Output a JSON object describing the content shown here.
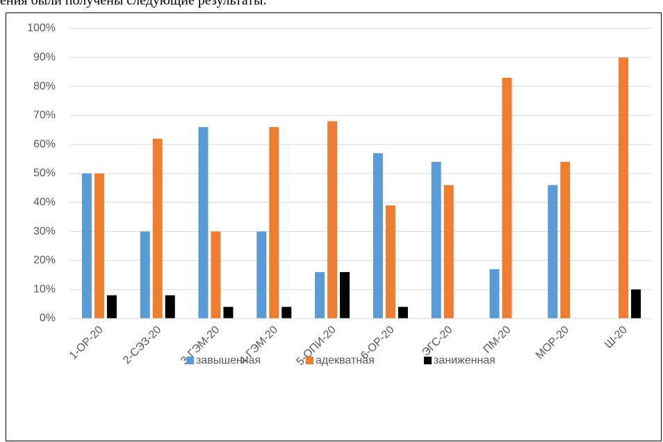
{
  "document_text": "ения были получены следующие результаты:",
  "chart_data": {
    "type": "bar",
    "categories": [
      "1-ОР-20",
      "2-СЭЗ-20",
      "3-ГЭМ-20",
      "4-ГЭМ-20",
      "5-ОПИ-20",
      "6-ОР-20",
      "ЭГС-20",
      "ПМ-20",
      "МОР-20",
      "Ш-20"
    ],
    "series": [
      {
        "name": "завышенная",
        "color": "#5b9bd5",
        "values": [
          50,
          30,
          66,
          30,
          16,
          57,
          54,
          17,
          46,
          0
        ]
      },
      {
        "name": "адекватная",
        "color": "#ed7d31",
        "values": [
          50,
          62,
          30,
          66,
          68,
          39,
          46,
          83,
          54,
          90
        ]
      },
      {
        "name": "заниженная",
        "color": "#000000",
        "values": [
          8,
          8,
          4,
          4,
          16,
          4,
          0,
          0,
          0,
          10
        ]
      }
    ],
    "ylim": [
      0,
      100
    ],
    "yticks": [
      {
        "value": 0,
        "label": "0%"
      },
      {
        "value": 10,
        "label": "10%"
      },
      {
        "value": 20,
        "label": "20%"
      },
      {
        "value": 30,
        "label": "30%"
      },
      {
        "value": 40,
        "label": "40%"
      },
      {
        "value": 50,
        "label": "50%"
      },
      {
        "value": 60,
        "label": "60%"
      },
      {
        "value": 70,
        "label": "70%"
      },
      {
        "value": 80,
        "label": "80%"
      },
      {
        "value": 90,
        "label": "90%"
      },
      {
        "value": 100,
        "label": "100%"
      }
    ],
    "grid": true,
    "legend": "bottom"
  }
}
